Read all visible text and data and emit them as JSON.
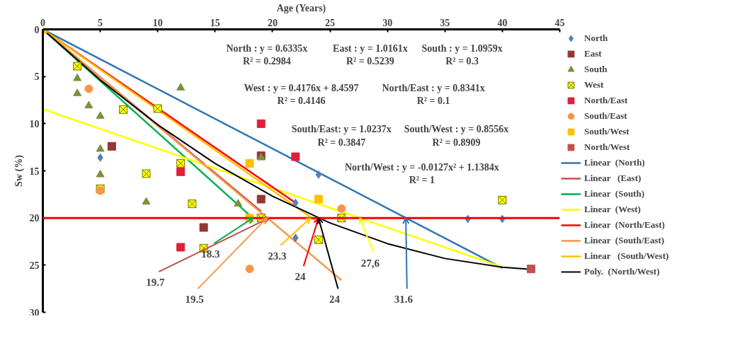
{
  "chart_data": {
    "type": "scatter",
    "xlabel": "Age (Years)",
    "ylabel": "Sw (%)",
    "xlim": [
      0,
      45
    ],
    "xticks": [
      0,
      5,
      10,
      15,
      20,
      25,
      30,
      35,
      40,
      45
    ],
    "ylim": [
      30,
      0
    ],
    "yticks": [
      0,
      5,
      10,
      15,
      20,
      25,
      30
    ],
    "grid": false,
    "legend": "right",
    "series": [
      {
        "name": "North",
        "marker": "diamond",
        "color": "#4f81bd",
        "x": [
          5,
          22,
          22,
          24,
          37,
          40
        ],
        "values": [
          13.6,
          18.4,
          22.1,
          15.4,
          20.1,
          20.1
        ]
      },
      {
        "name": "East",
        "marker": "square",
        "color": "#953735",
        "x": [
          6,
          14,
          19,
          19
        ],
        "values": [
          12.4,
          21,
          18,
          13.4
        ]
      },
      {
        "name": "South",
        "marker": "triangle",
        "color": "#77933c",
        "x": [
          3,
          3,
          4,
          5,
          5,
          5,
          9,
          12,
          17,
          19
        ],
        "values": [
          5.2,
          6.8,
          8.1,
          9.2,
          12.7,
          15.4,
          18.3,
          6.2,
          18.5,
          13.6
        ]
      },
      {
        "name": "West",
        "marker": "cross",
        "color": "#ffff00",
        "x": [
          3,
          5,
          7,
          9,
          10,
          12,
          13,
          14,
          19,
          24,
          26,
          40
        ],
        "values": [
          3.9,
          16.9,
          8.5,
          15.3,
          8.4,
          14.2,
          18.5,
          23.2,
          20,
          22.3,
          20,
          18.1
        ]
      },
      {
        "name": "North/East",
        "marker": "square",
        "color": "#e0203a",
        "x": [
          12,
          12,
          19,
          22
        ],
        "values": [
          15.1,
          23.1,
          10,
          13.5
        ]
      },
      {
        "name": "South/East",
        "marker": "circle",
        "color": "#f79646",
        "x": [
          4,
          5,
          18,
          26
        ],
        "values": [
          6.3,
          17.1,
          25.4,
          19
        ]
      },
      {
        "name": "South/West",
        "marker": "square",
        "color": "#ffc000",
        "x": [
          0,
          18,
          18,
          24
        ],
        "values": [
          0,
          14.2,
          20,
          18
        ]
      },
      {
        "name": "North/West",
        "marker": "square",
        "color": "#c0504d",
        "x": [
          42.5
        ],
        "values": [
          25.4
        ]
      },
      {
        "name": "Linear  (North)",
        "type": "line",
        "marker": "none",
        "color": "#2e75b6",
        "x": [
          0,
          40
        ],
        "values": [
          0,
          25.3
        ]
      },
      {
        "name": "Linear   (East)",
        "type": "line",
        "marker": "none",
        "color": "#c0504d",
        "x": [
          0,
          19
        ],
        "values": [
          0,
          19.3
        ]
      },
      {
        "name": "Linear  (South)",
        "type": "line",
        "marker": "none",
        "color": "#00b050",
        "x": [
          0,
          18
        ],
        "values": [
          0,
          19.7
        ]
      },
      {
        "name": "Linear  (West)",
        "type": "line",
        "marker": "none",
        "color": "#ffff00",
        "x": [
          0,
          40
        ],
        "values": [
          8.46,
          25.2
        ]
      },
      {
        "name": "Linear  (North/East)",
        "type": "line",
        "marker": "none",
        "color": "#ff0000",
        "x": [
          0,
          22
        ],
        "values": [
          0,
          18.4
        ]
      },
      {
        "name": "Linear  (South/East)",
        "type": "line",
        "marker": "none",
        "color": "#f79646",
        "x": [
          0,
          26
        ],
        "values": [
          0,
          26.6
        ]
      },
      {
        "name": "Linear   (South/West)",
        "type": "line",
        "marker": "none",
        "color": "#ffc000",
        "x": [
          0,
          24
        ],
        "values": [
          0,
          20.5
        ]
      },
      {
        "name": "Poly.  (North/West)",
        "type": "line",
        "marker": "none",
        "color": "#000000",
        "x": [
          0,
          5,
          10,
          15,
          20,
          25,
          30,
          35,
          40,
          42.5
        ],
        "values": [
          0,
          5.37,
          10.11,
          14.22,
          17.69,
          20.52,
          22.72,
          24.29,
          25.22,
          25.44
        ]
      }
    ],
    "ref_lines": [
      {
        "axis": "y",
        "value": 20,
        "label": null,
        "color": "#ff0000"
      }
    ],
    "annotations": [
      "North : y = 0.6335x\nR² = 0.2984",
      "East : y = 1.0161x\nR² = 0.5239",
      "South : y = 1.0959x\nR² = 0.3",
      "West : y = 0.4176x + 8.4597\nR² = 0.4146",
      "North/East : y = 0.8341x\nR² = 0.1",
      "South/East: y = 1.0237x\nR² = 0.3847",
      "South/West : y = 0.8556x\nR² = 0.8909",
      "North/West : y = -0.0127x² + 1.1384x\nR² = 1",
      {
        "text": "18.3",
        "x": 18.3,
        "y": 20
      },
      {
        "text": "19.7",
        "x": 19.7,
        "y": 20
      },
      {
        "text": "19.5",
        "x": 19.5,
        "y": 20
      },
      {
        "text": "23.3",
        "x": 23.3,
        "y": 20
      },
      {
        "text": "24",
        "x": 24,
        "y": 20
      },
      {
        "text": "24",
        "x": 24,
        "y": 20
      },
      {
        "text": "27,6",
        "x": 27.6,
        "y": 20
      },
      {
        "text": "31.6",
        "x": 31.6,
        "y": 20
      }
    ]
  }
}
